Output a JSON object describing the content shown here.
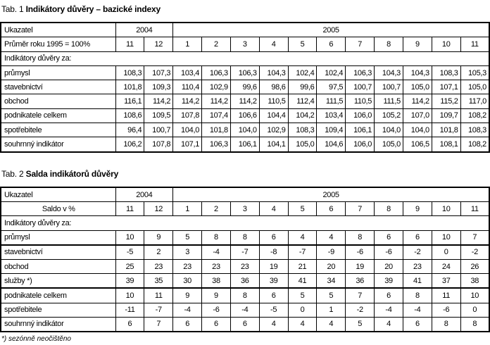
{
  "table1": {
    "title_prefix": "Tab. 1",
    "title_bold": "Indikátory důvěry – bazické indexy",
    "header_label": "Ukazatel",
    "subheader_label": "Průměr roku 1995 = 100%",
    "years": [
      {
        "label": "2004",
        "span": 2
      },
      {
        "label": "2005",
        "span": 11
      }
    ],
    "months": [
      "11",
      "12",
      "1",
      "2",
      "3",
      "4",
      "5",
      "6",
      "7",
      "8",
      "9",
      "10",
      "11"
    ],
    "section_label": "Indikátory důvěry za:",
    "rows": [
      {
        "label": "průmysl",
        "values": [
          "108,3",
          "107,3",
          "103,4",
          "106,3",
          "106,3",
          "104,3",
          "102,4",
          "102,4",
          "106,3",
          "104,3",
          "104,3",
          "108,3",
          "105,3"
        ]
      },
      {
        "label": "stavebnictví",
        "values": [
          "101,8",
          "109,3",
          "110,4",
          "102,9",
          "99,6",
          "98,6",
          "99,6",
          "97,5",
          "100,7",
          "100,7",
          "105,0",
          "107,1",
          "105,0"
        ]
      },
      {
        "label": "obchod",
        "values": [
          "116,1",
          "114,2",
          "114,2",
          "114,2",
          "114,2",
          "110,5",
          "112,4",
          "111,5",
          "110,5",
          "111,5",
          "114,2",
          "115,2",
          "117,0"
        ]
      },
      {
        "label": "podnikatele celkem",
        "values": [
          "108,6",
          "109,5",
          "107,8",
          "107,4",
          "106,6",
          "104,4",
          "104,2",
          "103,4",
          "106,0",
          "105,2",
          "107,0",
          "109,7",
          "108,2"
        ]
      },
      {
        "label": "spotřebitele",
        "values": [
          "96,4",
          "100,7",
          "104,0",
          "101,8",
          "104,0",
          "102,9",
          "108,3",
          "109,4",
          "106,1",
          "104,0",
          "104,0",
          "101,8",
          "108,3"
        ]
      },
      {
        "label": "souhrnný indikátor",
        "values": [
          "106,2",
          "107,8",
          "107,1",
          "106,3",
          "106,1",
          "104,1",
          "105,0",
          "104,6",
          "106,0",
          "105,0",
          "106,5",
          "108,1",
          "108,2"
        ]
      }
    ]
  },
  "table2": {
    "title_prefix": "Tab. 2",
    "title_bold": "Salda indikátorů důvěry",
    "header_label": "Ukazatel",
    "subheader_label": "Saldo v %",
    "years": [
      {
        "label": "2004",
        "span": 2
      },
      {
        "label": "2005",
        "span": 11
      }
    ],
    "months": [
      "11",
      "12",
      "1",
      "2",
      "3",
      "4",
      "5",
      "6",
      "7",
      "8",
      "9",
      "10",
      "11"
    ],
    "section_label": "Indikátory důvěry za:",
    "rows": [
      {
        "label": "průmysl",
        "values": [
          "10",
          "9",
          "5",
          "8",
          "8",
          "6",
          "4",
          "4",
          "8",
          "6",
          "6",
          "10",
          "7"
        ],
        "thick": true
      },
      {
        "label": "stavebnictví",
        "values": [
          "-5",
          "2",
          "3",
          "-4",
          "-7",
          "-8",
          "-7",
          "-9",
          "-6",
          "-6",
          "-2",
          "0",
          "-2"
        ]
      },
      {
        "label": "obchod",
        "values": [
          "25",
          "23",
          "23",
          "23",
          "23",
          "19",
          "21",
          "20",
          "19",
          "20",
          "23",
          "24",
          "26"
        ]
      },
      {
        "label": "služby *)",
        "values": [
          "39",
          "35",
          "30",
          "38",
          "36",
          "39",
          "41",
          "34",
          "36",
          "39",
          "41",
          "37",
          "38"
        ],
        "thick": true
      },
      {
        "label": "podnikatele celkem",
        "values": [
          "10",
          "11",
          "9",
          "9",
          "8",
          "6",
          "5",
          "5",
          "7",
          "6",
          "8",
          "11",
          "10"
        ]
      },
      {
        "label": "spotřebitele",
        "values": [
          "-11",
          "-7",
          "-4",
          "-6",
          "-4",
          "-5",
          "0",
          "1",
          "-2",
          "-4",
          "-4",
          "-6",
          "0"
        ]
      },
      {
        "label": "souhrnný indikátor",
        "values": [
          "6",
          "7",
          "6",
          "6",
          "6",
          "4",
          "4",
          "4",
          "5",
          "4",
          "6",
          "8",
          "8"
        ]
      }
    ],
    "footnote": "*) sezónně neočištěno"
  }
}
